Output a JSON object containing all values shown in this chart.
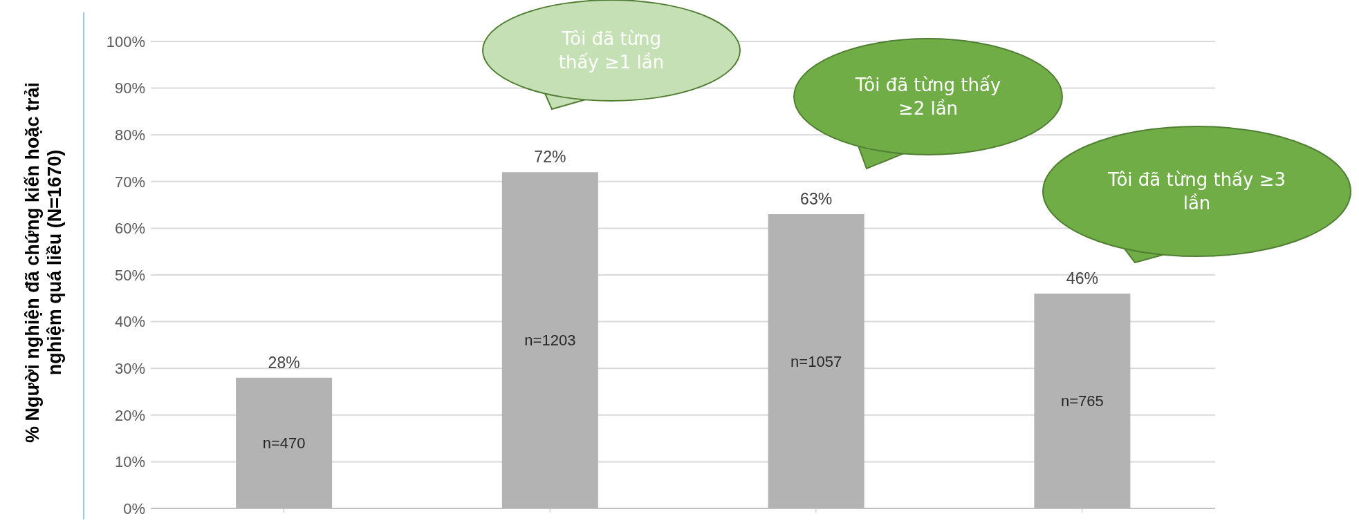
{
  "chart_data": {
    "type": "bar",
    "ylabel": "% Người nghiện đã chứng kiến hoặc trải nghiệm quá liều (N=1670)",
    "categories": [
      null,
      null,
      null,
      null
    ],
    "values": [
      28,
      72,
      63,
      46
    ],
    "color": "#b3b3b3",
    "value_labels": [
      "28%",
      "72%",
      "63%",
      "46%"
    ],
    "ylim": [
      0,
      100
    ],
    "yticks": [
      {
        "value": 0,
        "label": "0%"
      },
      {
        "value": 10,
        "label": "10%"
      },
      {
        "value": 20,
        "label": "20%"
      },
      {
        "value": 30,
        "label": "30%"
      },
      {
        "value": 40,
        "label": "40%"
      },
      {
        "value": 50,
        "label": "50%"
      },
      {
        "value": 60,
        "label": "60%"
      },
      {
        "value": 70,
        "label": "70%"
      },
      {
        "value": 80,
        "label": "80%"
      },
      {
        "value": 90,
        "label": "90%"
      },
      {
        "value": 100,
        "label": "100%"
      }
    ],
    "grid": "y",
    "annotations": [
      "n=470",
      "n=1203",
      "n=1057",
      "n=765",
      "Tôi đã từng thấy ≥1 lần",
      "Tôi đã từng thấy ≥2 lần",
      "Tôi đã từng thấy ≥3 lần"
    ]
  }
}
